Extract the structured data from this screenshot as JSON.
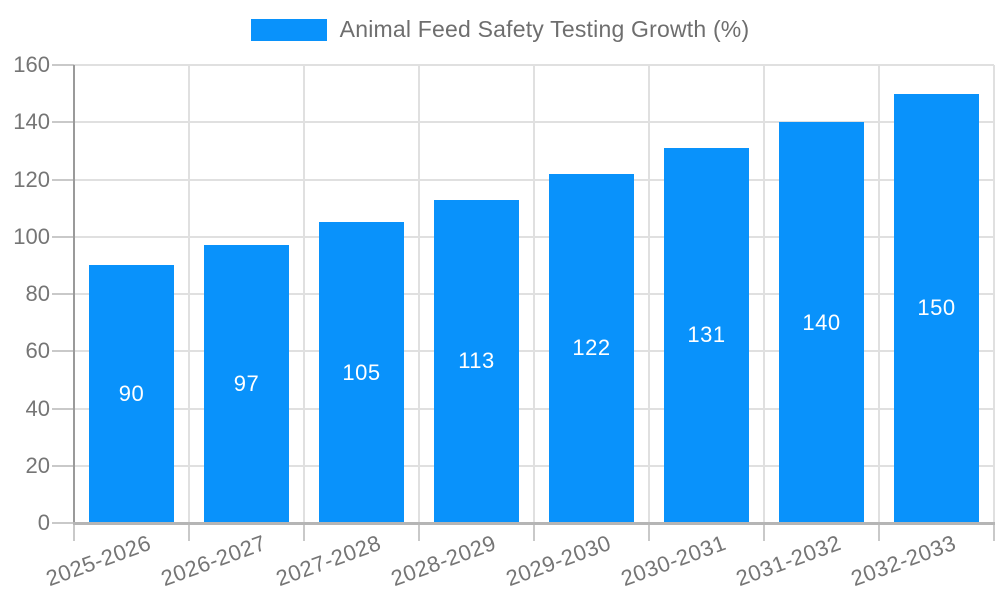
{
  "legend": {
    "series_label": "Animal Feed Safety Testing Growth (%)"
  },
  "chart_data": {
    "type": "bar",
    "title": "Animal Feed Safety Testing Growth (%)",
    "categories": [
      "2025-2026",
      "2026-2027",
      "2027-2028",
      "2028-2029",
      "2029-2030",
      "2030-2031",
      "2031-2032",
      "2032-2033"
    ],
    "values": [
      90,
      97,
      105,
      113,
      122,
      131,
      140,
      150
    ],
    "bar_labels": [
      "90",
      "97",
      "105",
      "113",
      "122",
      "131",
      "140",
      "150"
    ],
    "xlabel": "",
    "ylabel": "",
    "ylim": [
      0,
      160
    ],
    "yticks": [
      0,
      20,
      40,
      60,
      80,
      100,
      120,
      140,
      160
    ],
    "grid": true,
    "legend_position": "top",
    "x_label_rotation_deg": -20,
    "colors": {
      "bar": "#0992fb",
      "bar_label": "#ffffff",
      "axis_text": "#757575",
      "legend_text": "#6e6e6e",
      "gridline": "#e0e0e0",
      "tick_mark": "#c9c9c9",
      "y_axis_line": "#9a9a9a",
      "x_axis_line": "#b5b5b5",
      "background": "#ffffff"
    }
  }
}
